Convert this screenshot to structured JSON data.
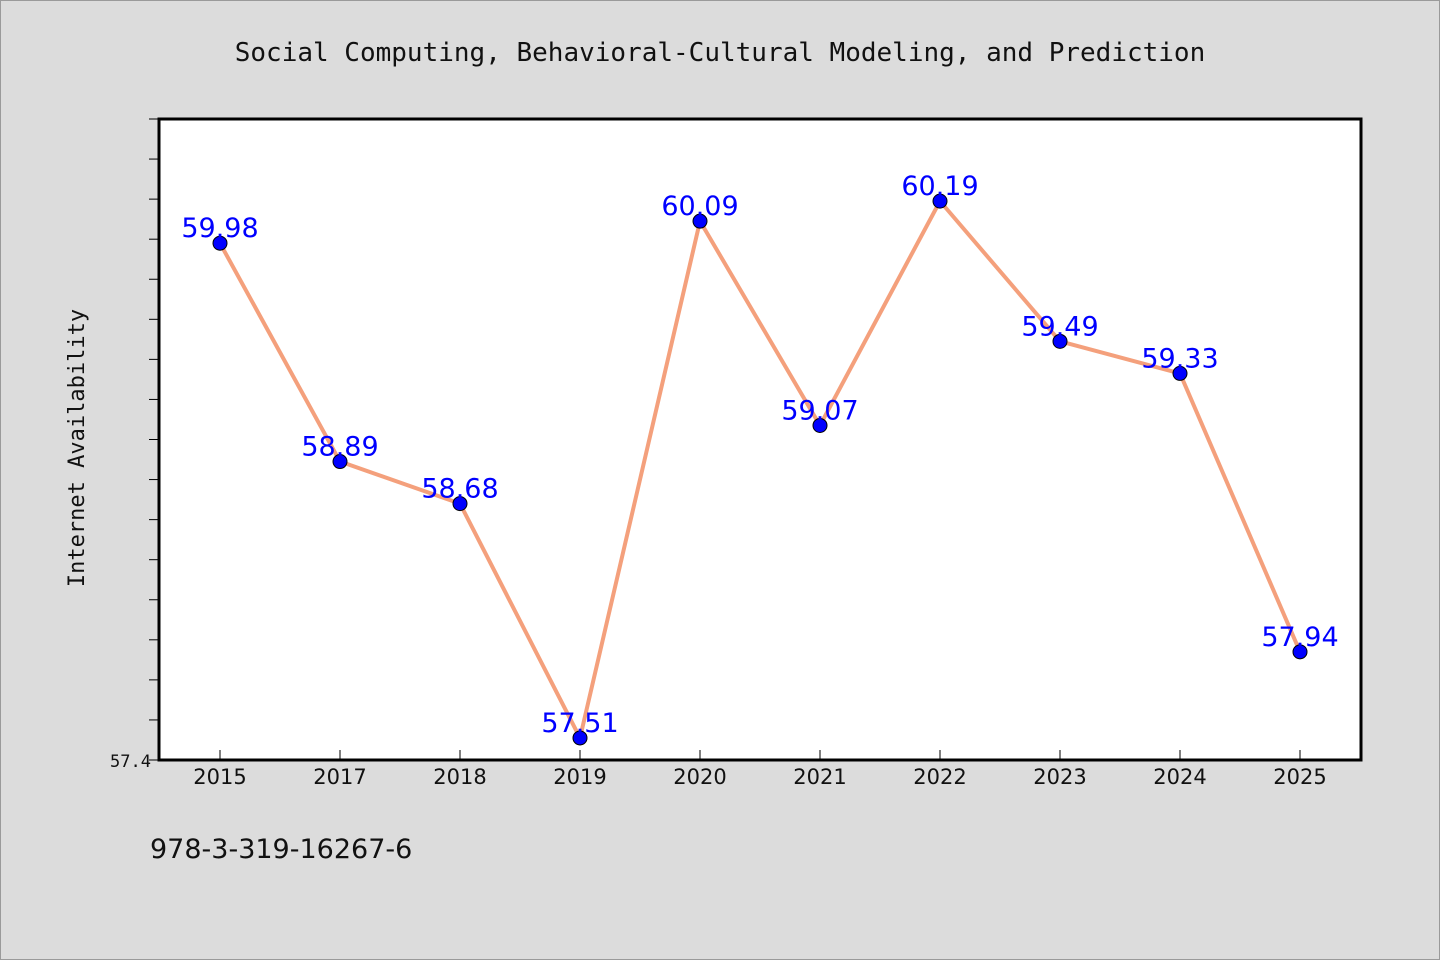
{
  "chart_data": {
    "type": "line",
    "title": "Social Computing, Behavioral-Cultural Modeling, and Prediction",
    "xlabel": "",
    "ylabel": "Internet Availability",
    "categories": [
      "2015",
      "2017",
      "2018",
      "2019",
      "2020",
      "2021",
      "2022",
      "2023",
      "2024",
      "2025"
    ],
    "series": [
      {
        "values": [
          59.98,
          58.89,
          58.68,
          57.51,
          60.09,
          59.07,
          60.19,
          59.49,
          59.33,
          57.94
        ],
        "data_labels": [
          "59.98",
          "58.89",
          "58.68",
          "57.51",
          "60.09",
          "59.07",
          "60.19",
          "59.49",
          "59.33",
          "57.94"
        ]
      }
    ],
    "ylim": [
      57.4,
      60.6
    ],
    "y_tick_labels": [
      "57.4"
    ],
    "minor_tick_step": 0.2,
    "grid": false,
    "line_color": "#f4a07c",
    "marker_color": "#0000ff",
    "label_color": "#0000ff",
    "plot_background": "#ffffff",
    "page_background": "#dcdcdc"
  },
  "footer": {
    "isbn": "978-3-319-16267-6"
  }
}
